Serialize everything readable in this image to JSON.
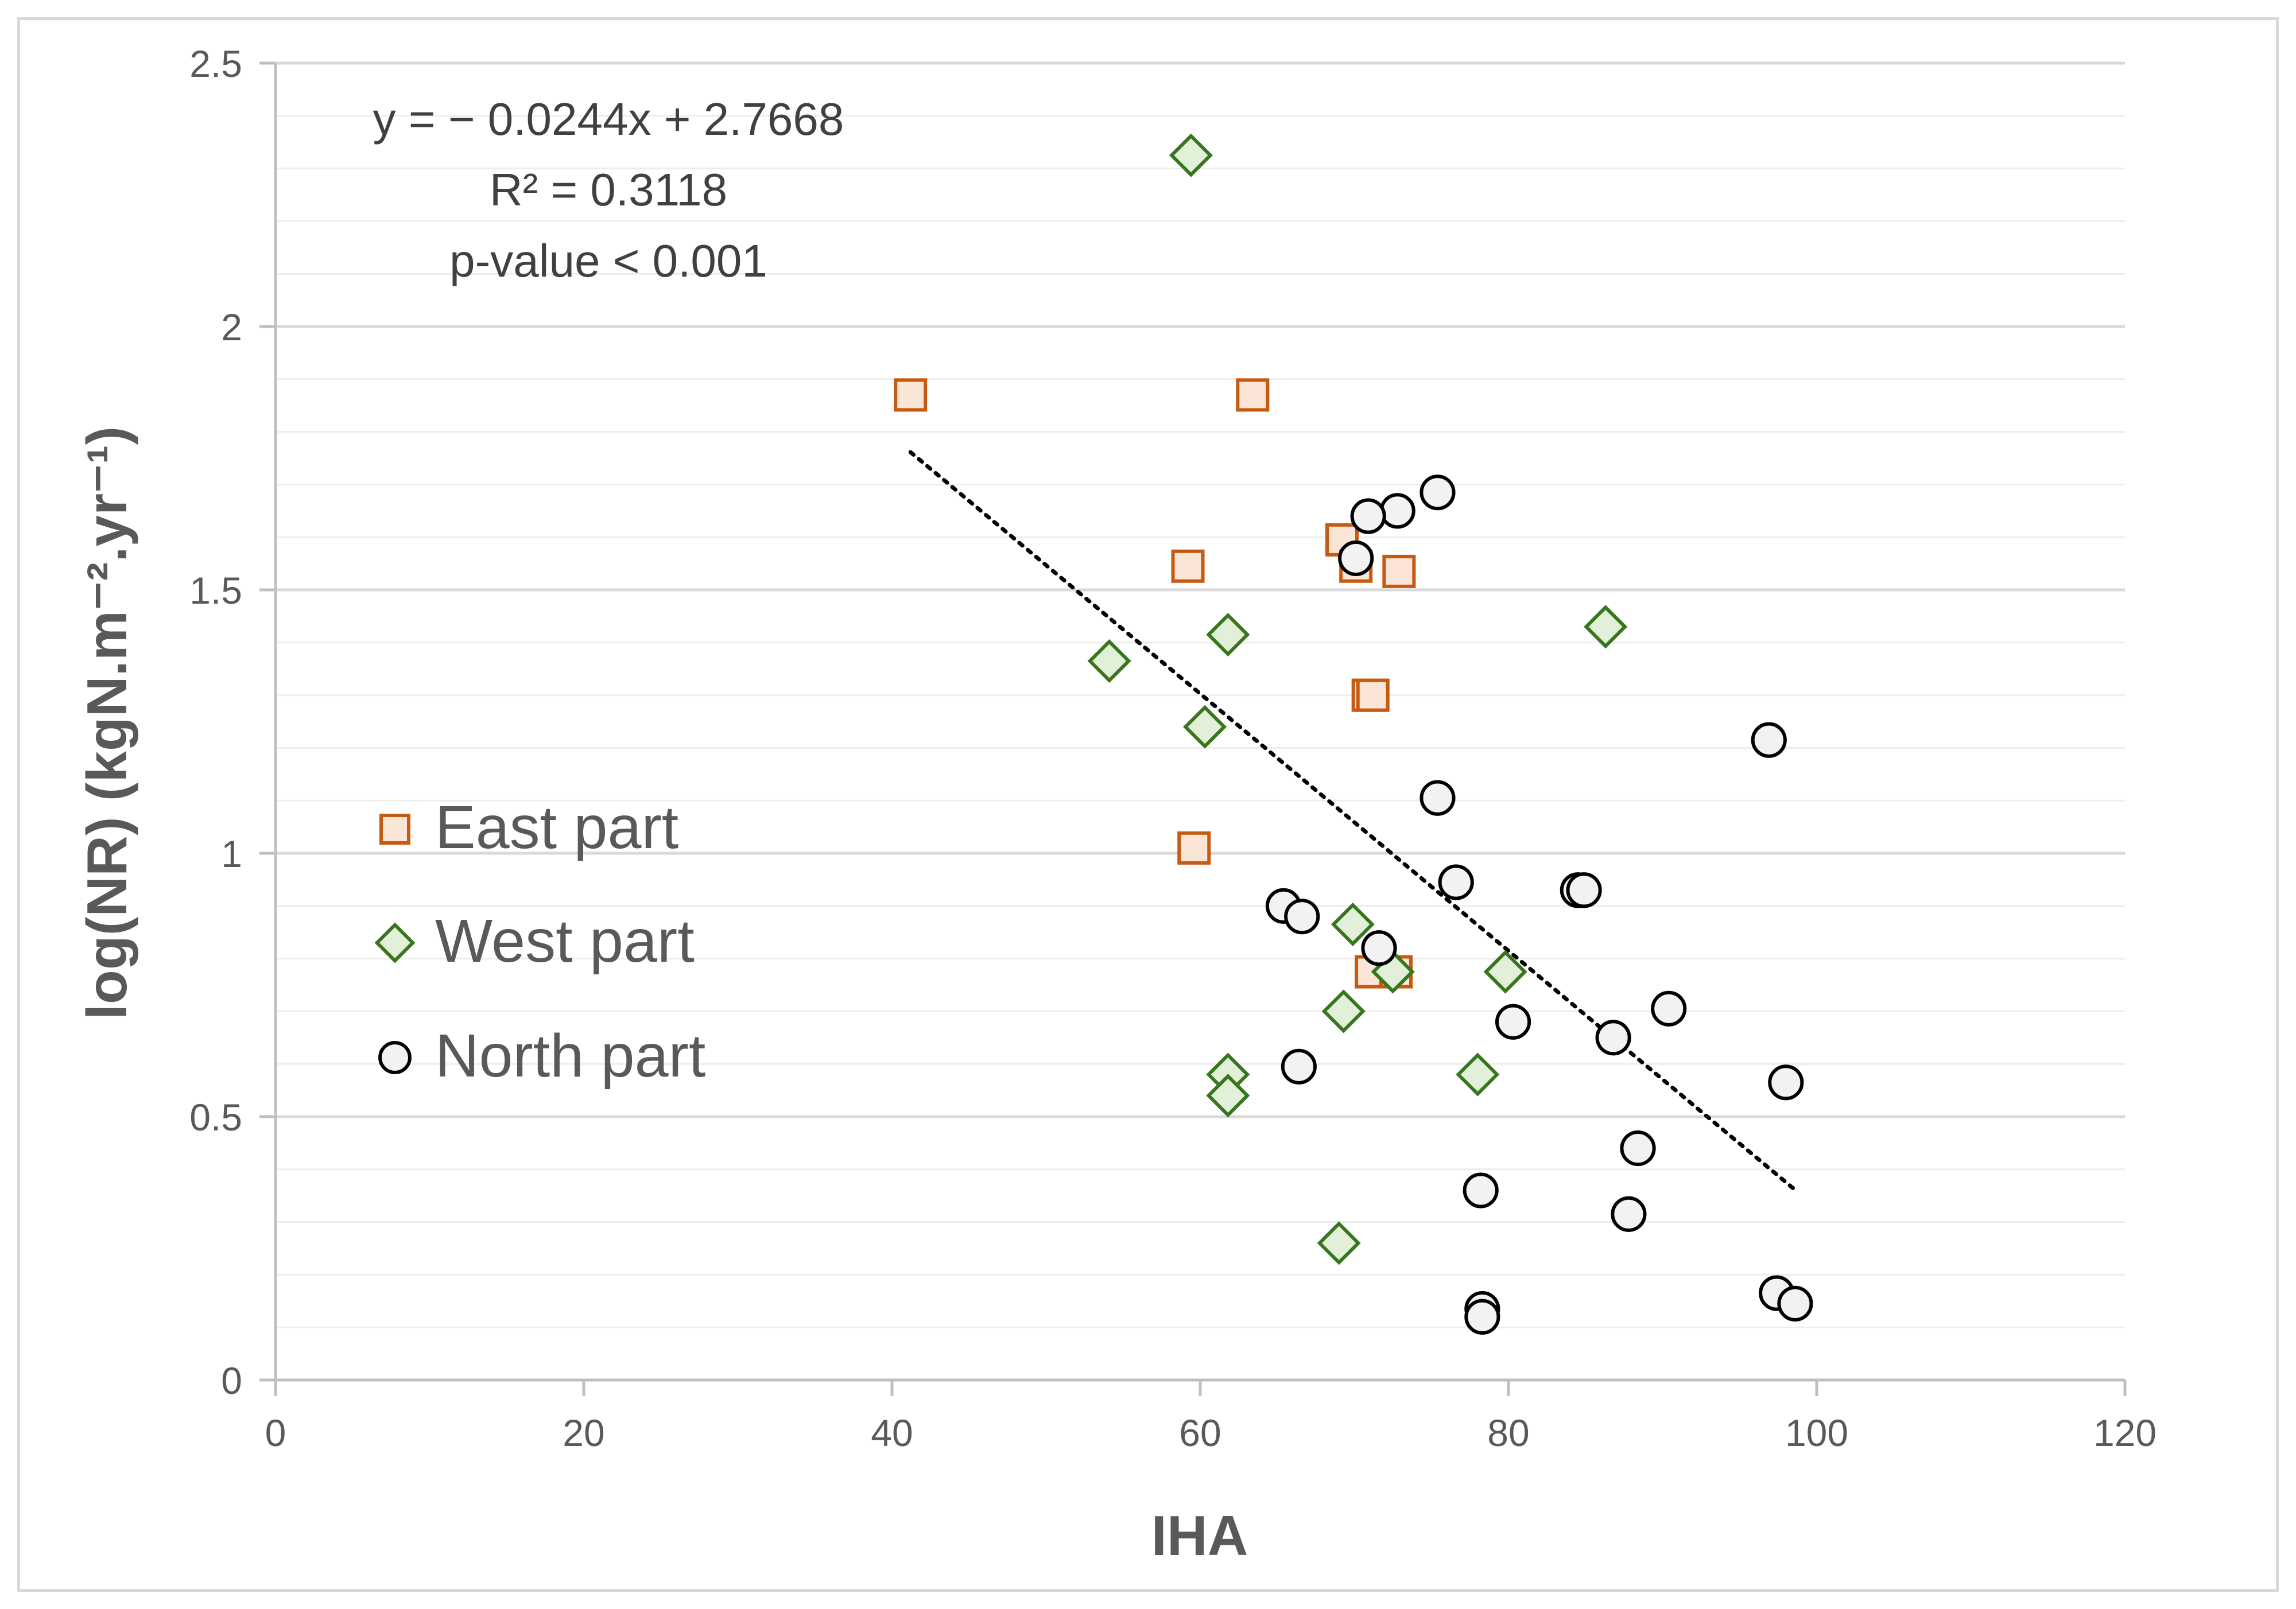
{
  "chart_data": {
    "type": "scatter",
    "title": "",
    "xlabel": "IHA",
    "ylabel": "log(NR) (kgN.m⁻².yr⁻¹)",
    "xlim": [
      0,
      120
    ],
    "ylim": [
      0,
      2.5
    ],
    "xticks": [
      0,
      20,
      40,
      60,
      80,
      100,
      120
    ],
    "yticks": [
      0,
      0.5,
      1,
      1.5,
      2,
      2.5
    ],
    "xtick_labels": [
      "0",
      "20",
      "40",
      "60",
      "80",
      "100",
      "120"
    ],
    "ytick_labels": [
      "0",
      "0.5",
      "1",
      "1.5",
      "2",
      "2.5"
    ],
    "grid": true,
    "legend_position": "left",
    "series": [
      {
        "name": "East part",
        "marker": "square",
        "fill": "#fbe5d6",
        "stroke": "#c55a11",
        "points": [
          [
            41.2,
            1.87
          ],
          [
            63.4,
            1.87
          ],
          [
            69.2,
            1.595
          ],
          [
            70.1,
            1.545
          ],
          [
            59.2,
            1.545
          ],
          [
            72.9,
            1.535
          ],
          [
            70.9,
            1.3
          ],
          [
            71.2,
            1.3
          ],
          [
            59.6,
            1.01
          ],
          [
            71.1,
            0.775
          ],
          [
            72.7,
            0.775
          ]
        ]
      },
      {
        "name": "West part",
        "marker": "diamond",
        "fill": "#e2f0d9",
        "stroke": "#38761d",
        "points": [
          [
            59.4,
            2.325
          ],
          [
            61.8,
            1.415
          ],
          [
            86.3,
            1.43
          ],
          [
            54.1,
            1.365
          ],
          [
            60.3,
            1.24
          ],
          [
            69.9,
            0.865
          ],
          [
            79.8,
            0.775
          ],
          [
            72.5,
            0.775
          ],
          [
            69.3,
            0.7
          ],
          [
            61.8,
            0.58
          ],
          [
            78,
            0.58
          ],
          [
            61.8,
            0.54
          ],
          [
            69,
            0.26
          ]
        ]
      },
      {
        "name": "North part",
        "marker": "circle",
        "fill": "#f2f2f2",
        "stroke": "#000000",
        "points": [
          [
            75.4,
            1.685
          ],
          [
            72.8,
            1.65
          ],
          [
            70.9,
            1.64
          ],
          [
            70.1,
            1.56
          ],
          [
            96.9,
            1.215
          ],
          [
            75.4,
            1.105
          ],
          [
            76.6,
            0.945
          ],
          [
            84.5,
            0.93
          ],
          [
            84.9,
            0.93
          ],
          [
            65.4,
            0.9
          ],
          [
            66.6,
            0.88
          ],
          [
            71.6,
            0.82
          ],
          [
            90.4,
            0.705
          ],
          [
            80.3,
            0.68
          ],
          [
            86.8,
            0.65
          ],
          [
            66.4,
            0.595
          ],
          [
            98,
            0.565
          ],
          [
            88.4,
            0.44
          ],
          [
            78.2,
            0.36
          ],
          [
            87.8,
            0.315
          ],
          [
            97.4,
            0.165
          ],
          [
            98.6,
            0.145
          ],
          [
            78.3,
            0.135
          ],
          [
            78.3,
            0.12
          ]
        ]
      }
    ],
    "trendline": {
      "type": "linear",
      "slope": -0.0244,
      "intercept": 2.7668,
      "x_range": [
        41.2,
        98.6
      ],
      "style": "dotted"
    },
    "annotations": [
      "y = − 0.0244x + 2.7668",
      "R² = 0.3118",
      "p-value < 0.001"
    ]
  }
}
